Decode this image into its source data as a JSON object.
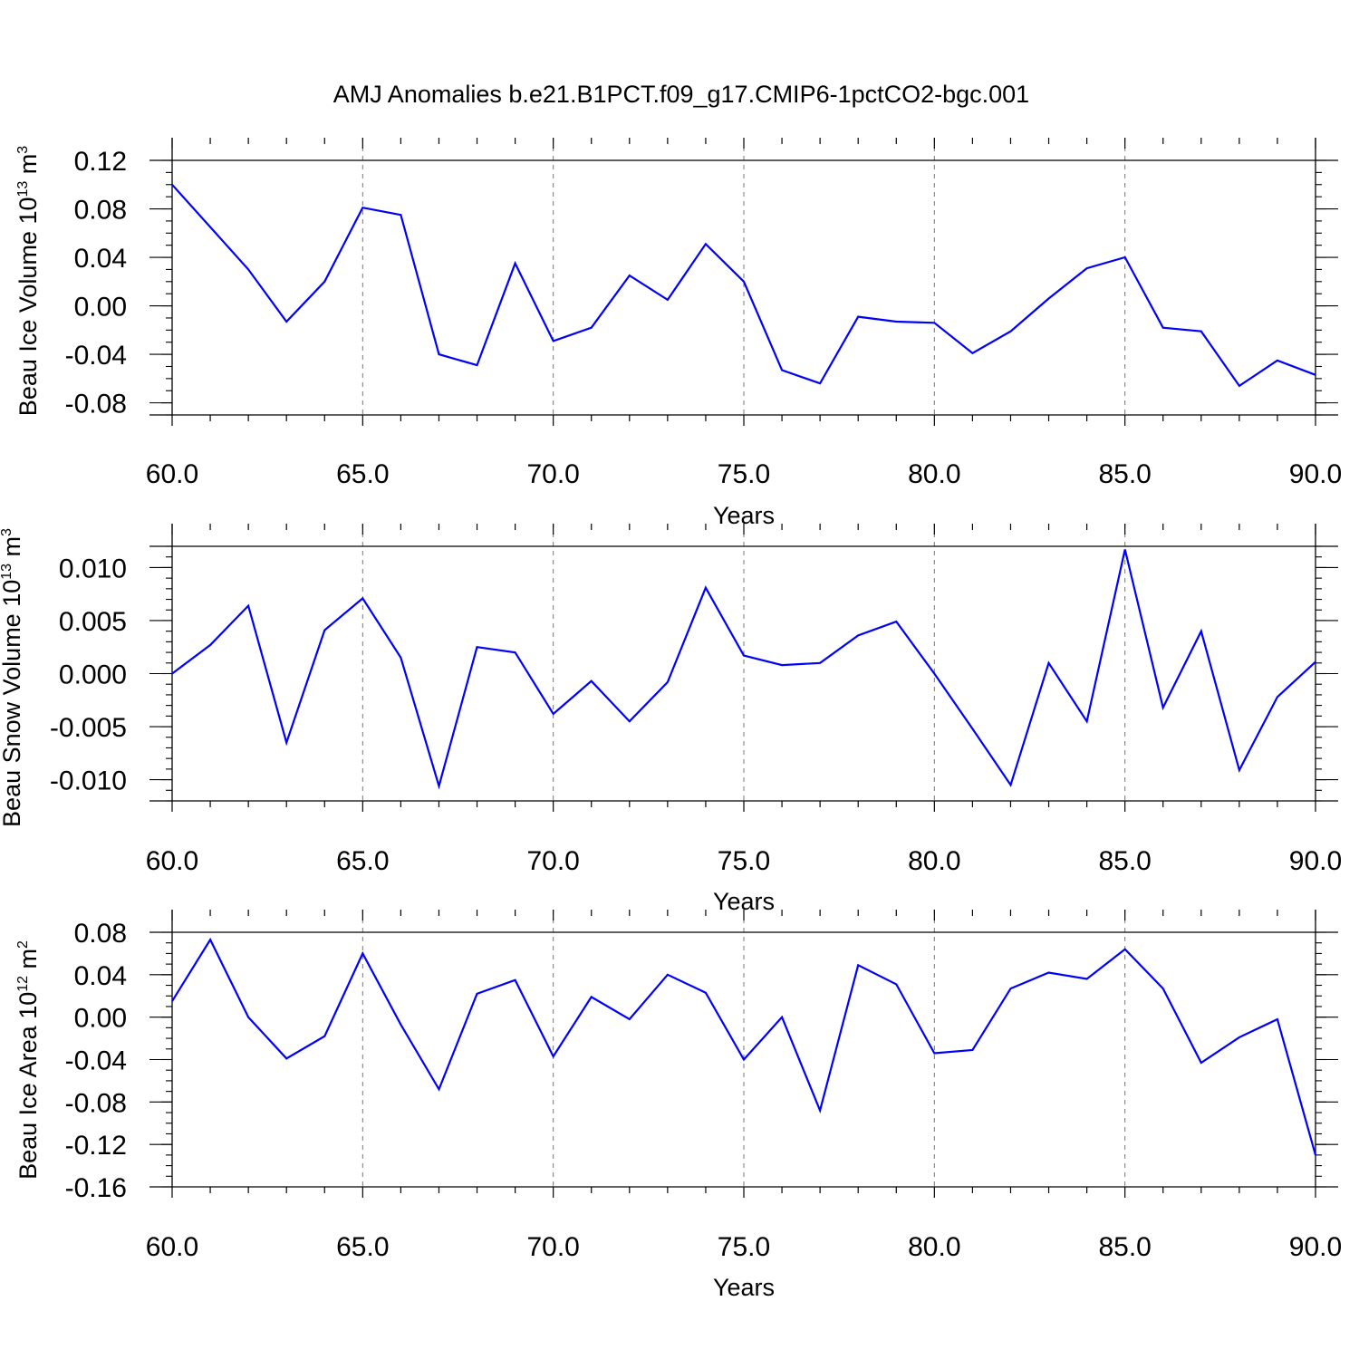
{
  "figure": {
    "title": "AMJ Anomalies b.e21.B1PCT.f09_g17.CMIP6-1pctCO2-bgc.001"
  },
  "chart_data": [
    {
      "type": "line",
      "xlabel": "Years",
      "ylabel": {
        "main": "Beau Ice Volume 10",
        "exp": "13",
        "unit": " m",
        "unit_exp": "3"
      },
      "xlim": [
        60,
        90
      ],
      "ylim": [
        -0.09,
        0.12
      ],
      "xticks": [
        60,
        65,
        70,
        75,
        80,
        85,
        90
      ],
      "xtick_labels": [
        "60.0",
        "65.0",
        "70.0",
        "75.0",
        "80.0",
        "85.0",
        "90.0"
      ],
      "yticks": [
        -0.08,
        -0.04,
        0.0,
        0.04,
        0.08,
        0.12
      ],
      "ytick_labels": [
        "-0.08",
        "-0.04",
        "0.00",
        "0.04",
        "0.08",
        "0.12"
      ],
      "y_minor_step": 0.01,
      "series": [
        {
          "color": "#0000ff",
          "x": [
            60,
            61,
            62,
            63,
            64,
            65,
            66,
            67,
            68,
            69,
            70,
            71,
            72,
            73,
            74,
            75,
            76,
            77,
            78,
            79,
            80,
            81,
            82,
            83,
            84,
            85,
            86,
            87,
            88,
            89,
            90
          ],
          "values": [
            0.1,
            0.065,
            0.03,
            -0.013,
            0.02,
            0.081,
            0.075,
            -0.04,
            -0.049,
            0.035,
            -0.029,
            -0.018,
            0.025,
            0.005,
            0.051,
            0.02,
            -0.053,
            -0.064,
            -0.009,
            -0.013,
            -0.014,
            -0.039,
            -0.021,
            0.006,
            0.031,
            0.04,
            -0.018,
            -0.021,
            -0.066,
            -0.045,
            -0.057
          ]
        }
      ],
      "grid": "dashed vertical at major x ticks"
    },
    {
      "type": "line",
      "xlabel": "Years",
      "ylabel": {
        "main": "Beau Snow Volume 10",
        "exp": "13",
        "unit": " m",
        "unit_exp": "3"
      },
      "xlim": [
        60,
        90
      ],
      "ylim": [
        -0.012,
        0.012
      ],
      "xticks": [
        60,
        65,
        70,
        75,
        80,
        85,
        90
      ],
      "xtick_labels": [
        "60.0",
        "65.0",
        "70.0",
        "75.0",
        "80.0",
        "85.0",
        "90.0"
      ],
      "yticks": [
        -0.01,
        -0.005,
        0.0,
        0.005,
        0.01
      ],
      "ytick_labels": [
        "-0.010",
        "-0.005",
        "0.000",
        "0.005",
        "0.010"
      ],
      "y_minor_step": 0.001,
      "series": [
        {
          "color": "#0000ff",
          "x": [
            60,
            61,
            62,
            63,
            64,
            65,
            66,
            67,
            68,
            69,
            70,
            71,
            72,
            73,
            74,
            75,
            76,
            77,
            78,
            79,
            80,
            81,
            82,
            83,
            84,
            85,
            86,
            87,
            88,
            89,
            90
          ],
          "values": [
            0.0,
            0.0027,
            0.0064,
            -0.0065,
            0.0041,
            0.0071,
            0.0015,
            -0.0106,
            0.0025,
            0.002,
            -0.0038,
            -0.0007,
            -0.0045,
            -0.0008,
            0.0081,
            0.0017,
            0.0008,
            0.001,
            0.0036,
            0.0049,
            0.0,
            -0.0052,
            -0.0105,
            0.001,
            -0.0045,
            0.0117,
            -0.0032,
            0.004,
            -0.0091,
            -0.0022,
            0.0011
          ]
        }
      ],
      "grid": "dashed vertical at major x ticks"
    },
    {
      "type": "line",
      "xlabel": "Years",
      "ylabel": {
        "main": "Beau Ice Area 10",
        "exp": "12",
        "unit": " m",
        "unit_exp": "2"
      },
      "xlim": [
        60,
        90
      ],
      "ylim": [
        -0.16,
        0.08
      ],
      "xticks": [
        60,
        65,
        70,
        75,
        80,
        85,
        90
      ],
      "xtick_labels": [
        "60.0",
        "65.0",
        "70.0",
        "75.0",
        "80.0",
        "85.0",
        "90.0"
      ],
      "yticks": [
        -0.16,
        -0.12,
        -0.08,
        -0.04,
        0.0,
        0.04,
        0.08
      ],
      "ytick_labels": [
        "-0.16",
        "-0.12",
        "-0.08",
        "-0.04",
        "0.00",
        "0.04",
        "0.08"
      ],
      "y_minor_step": 0.01,
      "series": [
        {
          "color": "#0000ff",
          "x": [
            60,
            61,
            62,
            63,
            64,
            65,
            66,
            67,
            68,
            69,
            70,
            71,
            72,
            73,
            74,
            75,
            76,
            77,
            78,
            79,
            80,
            81,
            82,
            83,
            84,
            85,
            86,
            87,
            88,
            89,
            90
          ],
          "values": [
            0.015,
            0.073,
            0.0,
            -0.039,
            -0.018,
            0.06,
            -0.007,
            -0.068,
            0.022,
            0.035,
            -0.037,
            0.019,
            -0.002,
            0.04,
            0.023,
            -0.04,
            0.0,
            -0.088,
            0.049,
            0.031,
            -0.034,
            -0.031,
            0.027,
            0.042,
            0.036,
            0.064,
            0.027,
            -0.043,
            -0.019,
            -0.002,
            -0.13
          ]
        }
      ],
      "grid": "dashed vertical at major x ticks"
    }
  ]
}
